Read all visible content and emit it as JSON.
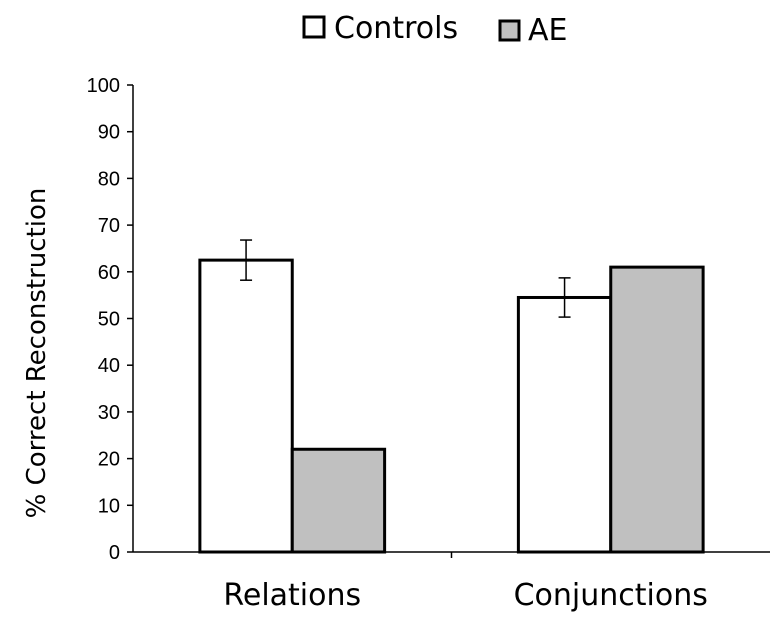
{
  "chart_data": {
    "type": "bar",
    "title": "",
    "xlabel": "",
    "ylabel": "% Correct Reconstruction",
    "categories": [
      "Relations",
      "Conjunctions"
    ],
    "series": [
      {
        "name": "Controls",
        "values": [
          62.5,
          54.5
        ],
        "error": [
          4.3,
          4.2
        ],
        "color": "#ffffff"
      },
      {
        "name": "AE",
        "values": [
          22,
          61
        ],
        "error": [
          null,
          null
        ],
        "color": "#c0c0c0"
      }
    ],
    "ylim": [
      0,
      100
    ],
    "yticks": [
      "0",
      "10",
      "20",
      "30",
      "40",
      "50",
      "60",
      "70",
      "80",
      "90",
      "100"
    ],
    "grid": false,
    "legend_position": "top"
  }
}
